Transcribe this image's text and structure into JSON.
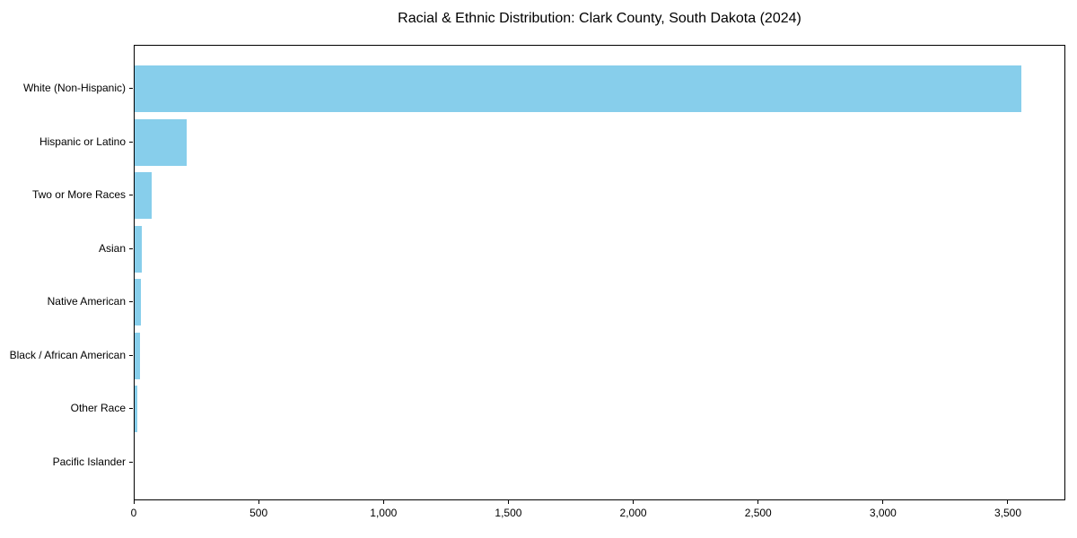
{
  "chart_data": {
    "type": "bar",
    "orientation": "horizontal",
    "title": "Racial & Ethnic Distribution: Clark County, South Dakota (2024)",
    "categories": [
      "White (Non-Hispanic)",
      "Hispanic or Latino",
      "Two or More Races",
      "Asian",
      "Native American",
      "Black / African American",
      "Other Race",
      "Pacific Islander"
    ],
    "values": [
      3550,
      210,
      70,
      30,
      25,
      20,
      10,
      0
    ],
    "xlabel": "",
    "ylabel": "",
    "xlim": [
      0,
      3730
    ],
    "x_ticks": [
      {
        "value": 0,
        "label": "0"
      },
      {
        "value": 500,
        "label": "500"
      },
      {
        "value": 1000,
        "label": "1,000"
      },
      {
        "value": 1500,
        "label": "1,500"
      },
      {
        "value": 2000,
        "label": "2,000"
      },
      {
        "value": 2500,
        "label": "2,500"
      },
      {
        "value": 3000,
        "label": "3,000"
      },
      {
        "value": 3500,
        "label": "3,500"
      }
    ],
    "bar_color": "#87CEEB",
    "grid": false,
    "legend": null
  }
}
